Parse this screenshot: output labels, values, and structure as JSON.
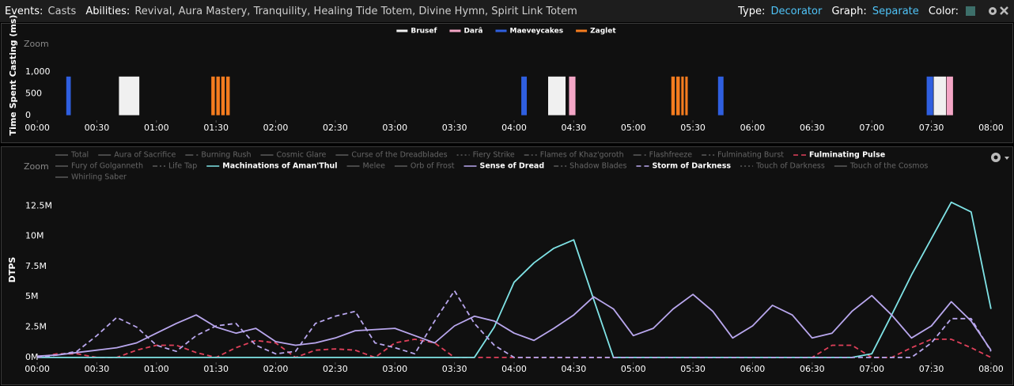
{
  "header": {
    "events_label": "Events:",
    "events": "Casts",
    "abilities_label": "Abilities:",
    "abilities": "Revival, Aura Mastery, Tranquility, Healing Tide Totem, Divine Hymn, Spirit Link Totem",
    "type_label": "Type:",
    "type": "Decorator",
    "graph_label": "Graph:",
    "graph": "Separate",
    "color_label": "Color:"
  },
  "chart_data": [
    {
      "type": "bar",
      "zoom": "Zoom",
      "y_label": "Time Spent Casting (ms)",
      "xlim": [
        -6,
        486
      ],
      "xticks": [
        {
          "value": 0,
          "label": "00:00"
        },
        {
          "value": 30,
          "label": "00:30"
        },
        {
          "value": 60,
          "label": "01:00"
        },
        {
          "value": 90,
          "label": "01:30"
        },
        {
          "value": 120,
          "label": "02:00"
        },
        {
          "value": 150,
          "label": "02:30"
        },
        {
          "value": 180,
          "label": "03:00"
        },
        {
          "value": 210,
          "label": "03:30"
        },
        {
          "value": 240,
          "label": "04:00"
        },
        {
          "value": 270,
          "label": "04:30"
        },
        {
          "value": 300,
          "label": "05:00"
        },
        {
          "value": 330,
          "label": "05:30"
        },
        {
          "value": 360,
          "label": "06:00"
        },
        {
          "value": 390,
          "label": "06:30"
        },
        {
          "value": 420,
          "label": "07:00"
        },
        {
          "value": 450,
          "label": "07:30"
        },
        {
          "value": 480,
          "label": "08:00"
        }
      ],
      "ylim": [
        -110,
        1100
      ],
      "yticks": [
        0,
        500,
        {
          "value": 1000,
          "label": "1,000"
        }
      ],
      "series": [
        {
          "name": "Brusef",
          "color": "#f0f0f0",
          "x_start": [
            41,
            257,
            451
          ],
          "x_end": [
            51.5,
            266,
            457.5
          ],
          "values": [
            900,
            900,
            900
          ]
        },
        {
          "name": "Darâ",
          "color": "#f4a6c6",
          "x_start": [
            267.5,
            457.5
          ],
          "x_end": [
            271,
            461
          ],
          "values": [
            900,
            900
          ]
        },
        {
          "name": "Maeveycakes",
          "color": "#2f5fe0",
          "x_start": [
            14.5,
            243.5,
            342.5,
            447.5
          ],
          "x_end": [
            17,
            246.5,
            345.5,
            451
          ],
          "values": [
            900,
            900,
            900,
            900
          ]
        },
        {
          "name": "Zaglet",
          "color": "#f57c1f",
          "x_start": [
            87.5,
            90,
            92.5,
            95,
            319,
            321.5,
            324,
            326
          ],
          "x_end": [
            89.5,
            92,
            94.5,
            97,
            321,
            323.5,
            325.5,
            327.5
          ],
          "values": [
            900,
            900,
            900,
            900,
            900,
            900,
            900,
            900
          ]
        }
      ]
    },
    {
      "type": "line",
      "zoom": "Zoom",
      "y_label": "DTPS",
      "x": [
        0,
        10,
        20,
        30,
        40,
        50,
        60,
        70,
        80,
        90,
        100,
        110,
        120,
        130,
        140,
        150,
        160,
        170,
        180,
        190,
        200,
        210,
        220,
        230,
        240,
        250,
        260,
        270,
        280,
        290,
        300,
        310,
        320,
        330,
        340,
        350,
        360,
        370,
        380,
        390,
        400,
        410,
        420,
        430,
        440,
        450,
        460,
        470,
        480
      ],
      "xlim": [
        -6,
        486
      ],
      "xticks": [
        {
          "value": 0,
          "label": "00:00"
        },
        {
          "value": 30,
          "label": "00:30"
        },
        {
          "value": 60,
          "label": "01:00"
        },
        {
          "value": 90,
          "label": "01:30"
        },
        {
          "value": 120,
          "label": "02:00"
        },
        {
          "value": 150,
          "label": "02:30"
        },
        {
          "value": 180,
          "label": "03:00"
        },
        {
          "value": 210,
          "label": "03:30"
        },
        {
          "value": 240,
          "label": "04:00"
        },
        {
          "value": 270,
          "label": "04:30"
        },
        {
          "value": 300,
          "label": "05:00"
        },
        {
          "value": 330,
          "label": "05:30"
        },
        {
          "value": 360,
          "label": "06:00"
        },
        {
          "value": 390,
          "label": "06:30"
        },
        {
          "value": 420,
          "label": "07:00"
        },
        {
          "value": 450,
          "label": "07:30"
        },
        {
          "value": 480,
          "label": "08:00"
        }
      ],
      "ylim": [
        -400000,
        14800000
      ],
      "yticks": [
        {
          "value": 0,
          "label": "0M"
        },
        {
          "value": 2500000,
          "label": "2.5M"
        },
        {
          "value": 5000000,
          "label": "5M"
        },
        {
          "value": 7500000,
          "label": "7.5M"
        },
        {
          "value": 10000000,
          "label": "10M"
        },
        {
          "value": 12500000,
          "label": "12.5M"
        }
      ],
      "series": [
        {
          "name": "Total",
          "dash": "solid",
          "visible": false
        },
        {
          "name": "Aura of Sacrifice",
          "dash": "solid",
          "visible": false
        },
        {
          "name": "Burning Rush",
          "dash": "longdash",
          "visible": false
        },
        {
          "name": "Cosmic Glare",
          "dash": "solid",
          "visible": false
        },
        {
          "name": "Curse of the Dreadblades",
          "dash": "solid",
          "visible": false
        },
        {
          "name": "Fiery Strike",
          "dash": "dotted",
          "visible": false
        },
        {
          "name": "Flames of Khaz'goroth",
          "dash": "dashdot",
          "visible": false
        },
        {
          "name": "Flashfreeze",
          "dash": "longdash",
          "visible": false
        },
        {
          "name": "Fulminating Burst",
          "dash": "dashdot",
          "visible": false
        },
        {
          "name": "Fulminating Pulse",
          "dash": "dashed",
          "visible": true,
          "color": "#e0405a",
          "values": [
            0,
            300000,
            300000,
            0,
            0,
            600000,
            1000000,
            1000000,
            400000,
            0,
            800000,
            1400000,
            1200000,
            0,
            600000,
            700000,
            600000,
            0,
            1200000,
            1500000,
            1200000,
            0,
            0,
            0,
            0,
            0,
            0,
            0,
            0,
            0,
            0,
            0,
            0,
            0,
            0,
            0,
            0,
            0,
            0,
            0,
            1000000,
            1000000,
            0,
            0,
            800000,
            1500000,
            1500000,
            800000,
            0
          ]
        },
        {
          "name": "Fury of Golganneth",
          "dash": "solid",
          "visible": false
        },
        {
          "name": "Life Tap",
          "dash": "dashdot",
          "visible": false
        },
        {
          "name": "Machinations of Aman'Thul",
          "dash": "solid",
          "visible": true,
          "color": "#7fe3e6",
          "values": [
            0,
            0,
            0,
            0,
            0,
            0,
            0,
            0,
            0,
            0,
            0,
            0,
            0,
            0,
            0,
            0,
            0,
            0,
            0,
            0,
            0,
            0,
            0,
            2500000,
            6200000,
            7800000,
            9000000,
            9700000,
            4800000,
            0,
            0,
            0,
            0,
            0,
            0,
            0,
            0,
            0,
            0,
            0,
            0,
            0,
            300000,
            3500000,
            6800000,
            9800000,
            12800000,
            12000000,
            4000000
          ]
        },
        {
          "name": "Melee",
          "dash": "solid",
          "visible": false
        },
        {
          "name": "Orb of Frost",
          "dash": "solid",
          "visible": false
        },
        {
          "name": "Sense of Dread",
          "dash": "solid",
          "visible": true,
          "color": "#b9a7ee",
          "values": [
            100000,
            200000,
            400000,
            600000,
            800000,
            1200000,
            2000000,
            2800000,
            3500000,
            2500000,
            2000000,
            2400000,
            1300000,
            1000000,
            1200000,
            1600000,
            2200000,
            2300000,
            2400000,
            1800000,
            1200000,
            2600000,
            3400000,
            3000000,
            2000000,
            1400000,
            2400000,
            3500000,
            5000000,
            4000000,
            1800000,
            2400000,
            4000000,
            5200000,
            3800000,
            1600000,
            2600000,
            4300000,
            3500000,
            1600000,
            2000000,
            3800000,
            5100000,
            3500000,
            1600000,
            2600000,
            4600000,
            3000000,
            600000
          ]
        },
        {
          "name": "Shadow Blades",
          "dash": "dashdot",
          "visible": false
        },
        {
          "name": "Storm of Darkness",
          "dash": "dashed",
          "visible": true,
          "color": "#b9a7ee",
          "values": [
            0,
            200000,
            500000,
            1800000,
            3300000,
            2500000,
            1000000,
            500000,
            1800000,
            2600000,
            2800000,
            1000000,
            300000,
            500000,
            2800000,
            3400000,
            3800000,
            1200000,
            800000,
            300000,
            3000000,
            5500000,
            2800000,
            1000000,
            0,
            0,
            0,
            0,
            0,
            0,
            0,
            0,
            0,
            0,
            0,
            0,
            0,
            0,
            0,
            0,
            0,
            0,
            0,
            0,
            0,
            1200000,
            3200000,
            3200000,
            500000
          ]
        },
        {
          "name": "Touch of Darkness",
          "dash": "dotted",
          "visible": false
        },
        {
          "name": "Touch of the Cosmos",
          "dash": "solid",
          "visible": false
        },
        {
          "name": "Whirling Saber",
          "dash": "solid",
          "visible": false
        }
      ]
    }
  ]
}
